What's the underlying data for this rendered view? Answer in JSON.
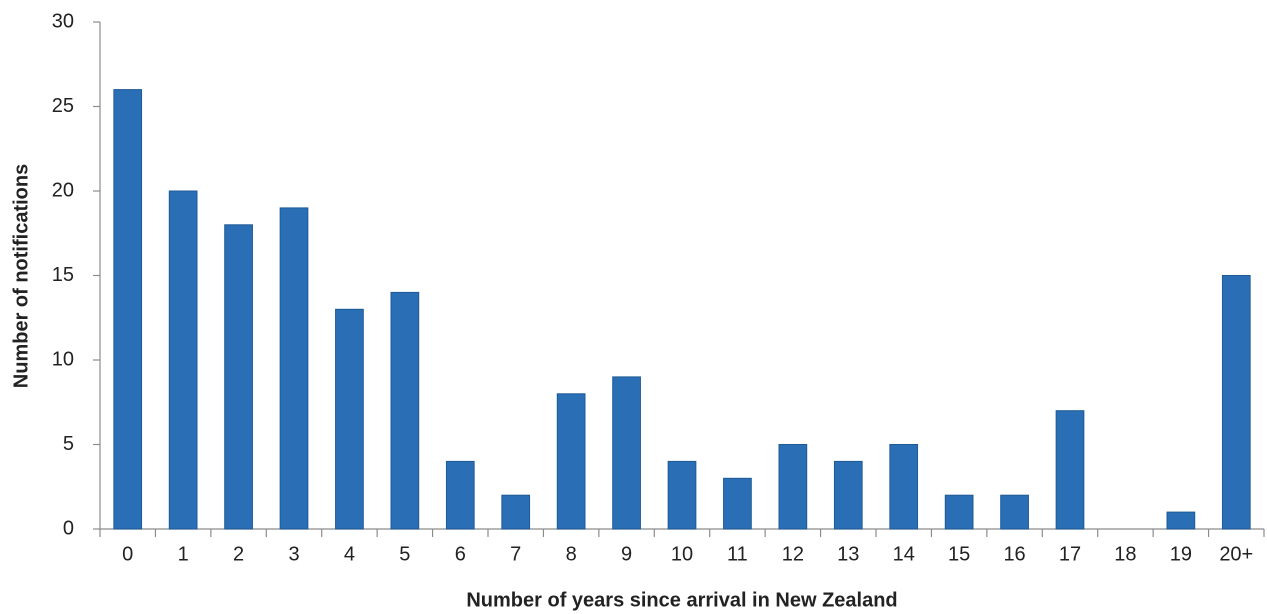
{
  "chart_data": {
    "type": "bar",
    "x_label": "Number of years since arrival in New Zealand",
    "y_label": "Number of notifications",
    "categories": [
      "0",
      "1",
      "2",
      "3",
      "4",
      "5",
      "6",
      "7",
      "8",
      "9",
      "10",
      "11",
      "12",
      "13",
      "14",
      "15",
      "16",
      "17",
      "18",
      "19",
      "20+"
    ],
    "values": [
      26,
      20,
      18,
      19,
      13,
      14,
      4,
      2,
      8,
      9,
      4,
      3,
      5,
      4,
      5,
      2,
      2,
      7,
      0,
      1,
      15
    ],
    "color": "#2a6fb5",
    "ylim": [
      0,
      30
    ],
    "yticks": [
      0,
      5,
      10,
      15,
      20,
      25,
      30
    ],
    "grid": false
  }
}
